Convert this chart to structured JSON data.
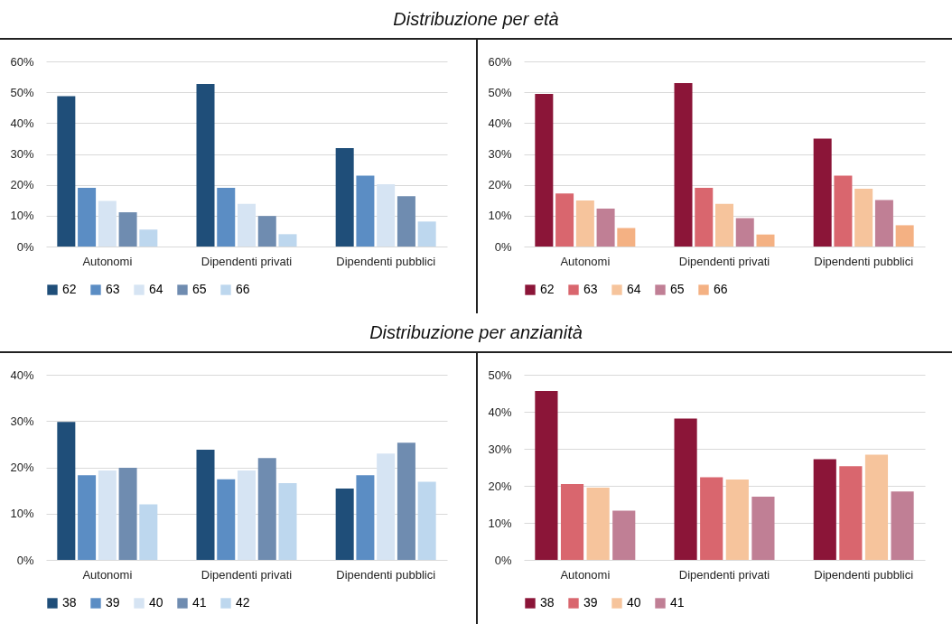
{
  "chart_data": [
    {
      "type": "bar",
      "title": "Distribuzione per età",
      "categories": [
        "Autonomi",
        "Dipendenti privati",
        "Dipendenti pubblici"
      ],
      "series": [
        {
          "name": "62",
          "color": "#1f4e79",
          "values": [
            48.7,
            52.7,
            31.9
          ]
        },
        {
          "name": "63",
          "color": "#5b8dc4",
          "values": [
            19,
            19,
            23
          ]
        },
        {
          "name": "64",
          "color": "#d6e4f3",
          "values": [
            14.8,
            13.8,
            20.2
          ]
        },
        {
          "name": "65",
          "color": "#6f8cb0",
          "values": [
            11.1,
            9.9,
            16.3
          ]
        },
        {
          "name": "66",
          "color": "#bdd7ee",
          "values": [
            5.5,
            4,
            8.1
          ]
        }
      ],
      "ylim": [
        0,
        60
      ],
      "yticks": [
        {
          "value": 0,
          "label": "0%"
        },
        {
          "value": 10,
          "label": "10%"
        },
        {
          "value": 20,
          "label": "20%"
        },
        {
          "value": 30,
          "label": "30%"
        },
        {
          "value": 40,
          "label": "40%"
        },
        {
          "value": 50,
          "label": "50%"
        },
        {
          "value": 60,
          "label": "60%"
        }
      ],
      "grid": "y",
      "legend": "bottom"
    },
    {
      "type": "bar",
      "categories": [
        "Autonomi",
        "Dipendenti privati",
        "Dipendenti pubblici"
      ],
      "series": [
        {
          "name": "62",
          "color": "#8b1538",
          "values": [
            49.5,
            53,
            35
          ]
        },
        {
          "name": "63",
          "color": "#d9666e",
          "values": [
            17.2,
            19,
            23
          ]
        },
        {
          "name": "64",
          "color": "#f6c49c",
          "values": [
            14.9,
            13.8,
            18.7
          ]
        },
        {
          "name": "65",
          "color": "#c07f95",
          "values": [
            12.3,
            9.2,
            15.1
          ]
        },
        {
          "name": "66",
          "color": "#f4b183",
          "values": [
            6,
            3.9,
            6.9
          ]
        }
      ],
      "ylim": [
        0,
        60
      ],
      "yticks": [
        {
          "value": 0,
          "label": "0%"
        },
        {
          "value": 10,
          "label": "10%"
        },
        {
          "value": 20,
          "label": "20%"
        },
        {
          "value": 30,
          "label": "30%"
        },
        {
          "value": 40,
          "label": "40%"
        },
        {
          "value": 50,
          "label": "50%"
        },
        {
          "value": 60,
          "label": "60%"
        }
      ],
      "grid": "y",
      "legend": "bottom"
    },
    {
      "type": "bar",
      "title": "Distribuzione per anzianità",
      "categories": [
        "Autonomi",
        "Dipendenti privati",
        "Dipendenti pubblici"
      ],
      "series": [
        {
          "name": "38",
          "color": "#1f4e79",
          "values": [
            29.8,
            23.8,
            15.4
          ]
        },
        {
          "name": "39",
          "color": "#5b8dc4",
          "values": [
            18.3,
            17.4,
            18.3
          ]
        },
        {
          "name": "40",
          "color": "#d6e4f3",
          "values": [
            19.3,
            19.3,
            23
          ]
        },
        {
          "name": "41",
          "color": "#6f8cb0",
          "values": [
            19.9,
            22,
            25.3
          ]
        },
        {
          "name": "42",
          "color": "#bdd7ee",
          "values": [
            12,
            16.6,
            16.9
          ]
        }
      ],
      "ylim": [
        0,
        40
      ],
      "yticks": [
        {
          "value": 0,
          "label": "0%"
        },
        {
          "value": 10,
          "label": "10%"
        },
        {
          "value": 20,
          "label": "20%"
        },
        {
          "value": 30,
          "label": "30%"
        },
        {
          "value": 40,
          "label": "40%"
        }
      ],
      "grid": "y",
      "legend": "bottom"
    },
    {
      "type": "bar",
      "categories": [
        "Autonomi",
        "Dipendenti privati",
        "Dipendenti pubblici"
      ],
      "series": [
        {
          "name": "38",
          "color": "#8b1538",
          "values": [
            45.6,
            38.2,
            27.2
          ]
        },
        {
          "name": "39",
          "color": "#d9666e",
          "values": [
            20.5,
            22.3,
            25.3
          ]
        },
        {
          "name": "40",
          "color": "#f6c49c",
          "values": [
            19.5,
            21.7,
            28.4
          ]
        },
        {
          "name": "41",
          "color": "#c07f95",
          "values": [
            13.3,
            17.1,
            18.5
          ]
        }
      ],
      "ylim": [
        0,
        50
      ],
      "yticks": [
        {
          "value": 0,
          "label": "0%"
        },
        {
          "value": 10,
          "label": "10%"
        },
        {
          "value": 20,
          "label": "20%"
        },
        {
          "value": 30,
          "label": "30%"
        },
        {
          "value": 40,
          "label": "40%"
        },
        {
          "value": 50,
          "label": "50%"
        }
      ],
      "grid": "y",
      "legend": "bottom"
    }
  ]
}
